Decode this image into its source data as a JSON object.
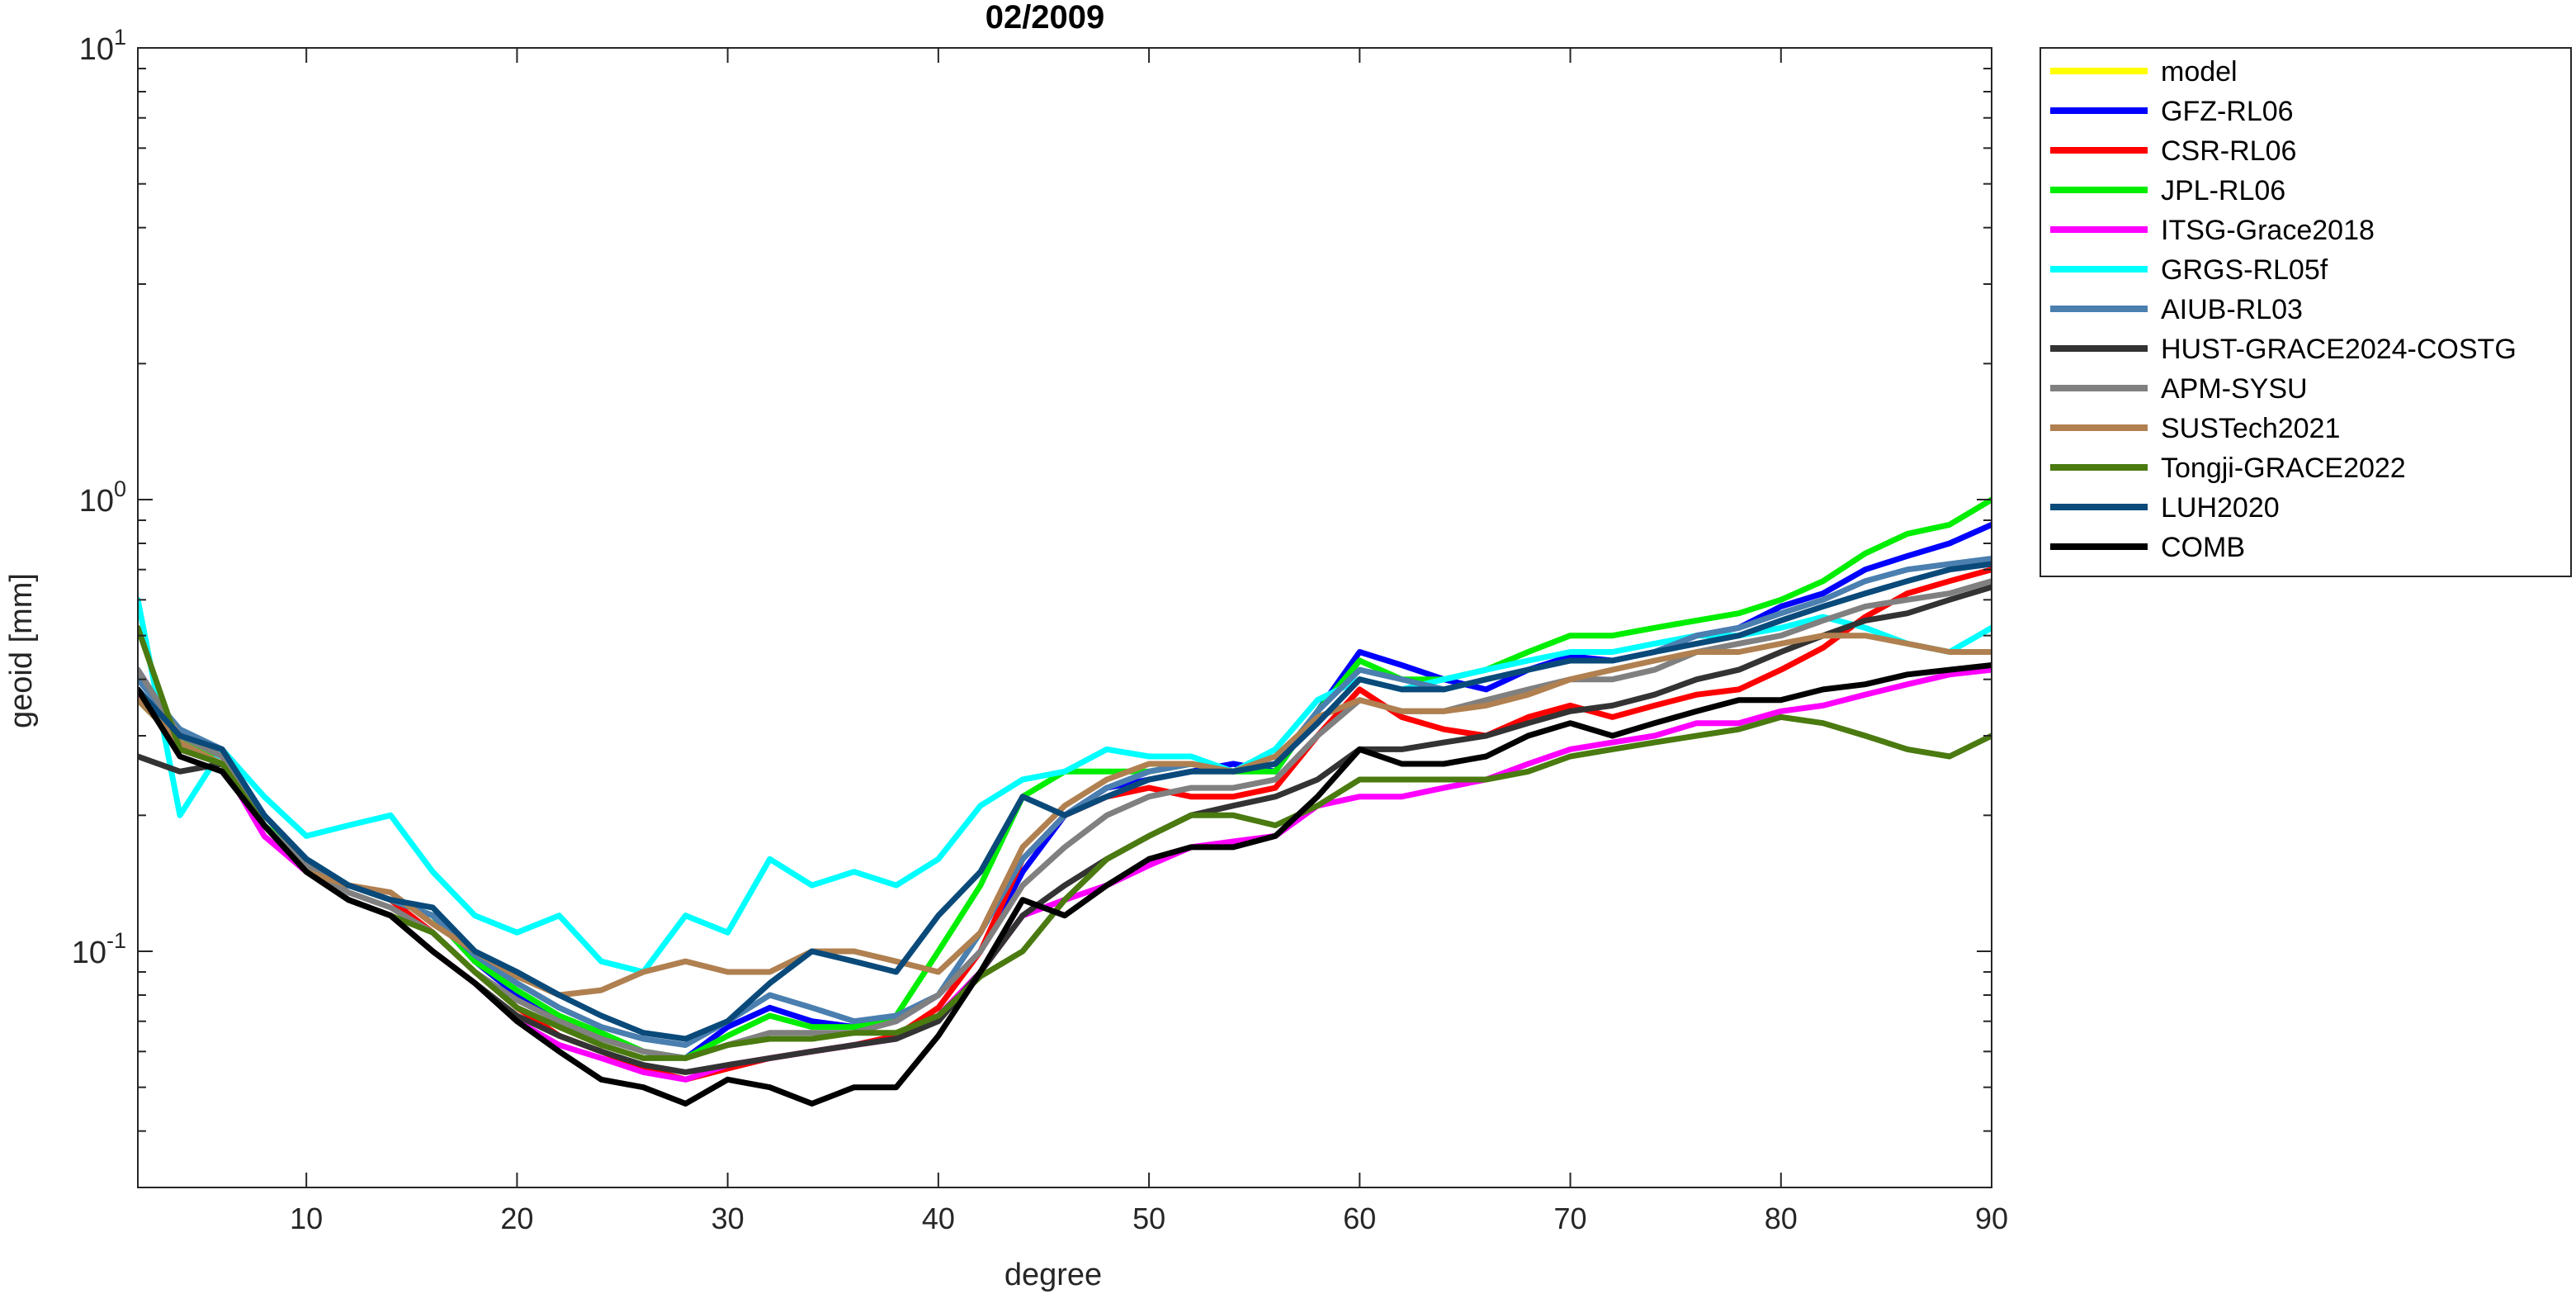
{
  "chart_data": {
    "type": "line",
    "title": "02/2009",
    "xlabel": "degree",
    "ylabel": "geoid [mm]",
    "xlim": [
      2,
      90
    ],
    "ylim": [
      0.03,
      10
    ],
    "yscale": "log",
    "x_ticks": [
      10,
      20,
      30,
      40,
      50,
      60,
      70,
      80,
      90
    ],
    "x_tick_labels": [
      "10",
      "20",
      "30",
      "40",
      "50",
      "60",
      "70",
      "80",
      "90"
    ],
    "y_ticks": [
      0.1,
      1,
      10
    ],
    "y_tick_labels": [
      {
        "base": "10",
        "exp": "-1"
      },
      {
        "base": "10",
        "exp": "0"
      },
      {
        "base": "10",
        "exp": "1"
      }
    ],
    "grid": false,
    "legend_position": "outside-right",
    "x": [
      2,
      4,
      6,
      8,
      10,
      12,
      14,
      16,
      18,
      20,
      22,
      24,
      26,
      28,
      30,
      32,
      34,
      36,
      38,
      40,
      42,
      44,
      46,
      48,
      50,
      52,
      54,
      56,
      58,
      60,
      62,
      64,
      66,
      68,
      70,
      72,
      74,
      76,
      78,
      80,
      82,
      84,
      86,
      88,
      90
    ],
    "series": [
      {
        "name": "model",
        "color": "#FFFF00",
        "values": [
          null,
          null,
          null,
          null,
          null,
          null,
          null,
          null,
          null,
          null,
          null,
          null,
          null,
          null,
          null,
          null,
          null,
          null,
          null,
          null,
          null,
          null,
          null,
          null,
          null,
          null,
          null,
          null,
          null,
          null,
          null,
          null,
          null,
          null,
          null,
          null,
          null,
          null,
          null,
          null,
          null,
          null,
          null,
          null,
          null
        ]
      },
      {
        "name": "GFZ-RL06",
        "color": "#0000FF",
        "values": [
          0.42,
          0.3,
          0.28,
          0.2,
          0.16,
          0.14,
          0.13,
          0.12,
          0.095,
          0.08,
          0.07,
          0.065,
          0.06,
          0.058,
          0.068,
          0.075,
          0.07,
          0.068,
          0.07,
          0.08,
          0.1,
          0.15,
          0.2,
          0.23,
          0.24,
          0.25,
          0.26,
          0.25,
          0.34,
          0.46,
          0.43,
          0.4,
          0.38,
          0.42,
          0.45,
          0.44,
          0.46,
          0.5,
          0.52,
          0.58,
          0.62,
          0.7,
          0.75,
          0.8,
          0.88
        ]
      },
      {
        "name": "CSR-RL06",
        "color": "#FF0000",
        "values": [
          0.36,
          0.31,
          0.27,
          0.19,
          0.15,
          0.14,
          0.13,
          0.11,
          0.09,
          0.075,
          0.065,
          0.06,
          0.055,
          0.052,
          0.055,
          0.058,
          0.06,
          0.062,
          0.065,
          0.075,
          0.1,
          0.16,
          0.2,
          0.22,
          0.23,
          0.22,
          0.22,
          0.23,
          0.3,
          0.38,
          0.33,
          0.31,
          0.3,
          0.33,
          0.35,
          0.33,
          0.35,
          0.37,
          0.38,
          0.42,
          0.47,
          0.55,
          0.62,
          0.66,
          0.7
        ]
      },
      {
        "name": "JPL-RL06",
        "color": "#00EE00",
        "values": [
          0.36,
          0.29,
          0.27,
          0.19,
          0.16,
          0.14,
          0.13,
          0.12,
          0.095,
          0.082,
          0.072,
          0.066,
          0.06,
          0.058,
          0.065,
          0.072,
          0.068,
          0.068,
          0.072,
          0.1,
          0.14,
          0.22,
          0.25,
          0.25,
          0.25,
          0.26,
          0.25,
          0.25,
          0.34,
          0.44,
          0.4,
          0.4,
          0.42,
          0.46,
          0.5,
          0.5,
          0.52,
          0.54,
          0.56,
          0.6,
          0.66,
          0.76,
          0.84,
          0.88,
          1.0
        ]
      },
      {
        "name": "ITSG-Grace2018",
        "color": "#FF00FF",
        "values": [
          0.37,
          0.28,
          0.26,
          0.18,
          0.15,
          0.13,
          0.12,
          0.1,
          0.085,
          0.07,
          0.062,
          0.058,
          0.054,
          0.052,
          0.056,
          0.058,
          0.06,
          0.062,
          0.064,
          0.072,
          0.09,
          0.12,
          0.13,
          0.14,
          0.155,
          0.17,
          0.175,
          0.18,
          0.21,
          0.22,
          0.22,
          0.23,
          0.24,
          0.26,
          0.28,
          0.29,
          0.3,
          0.32,
          0.32,
          0.34,
          0.35,
          0.37,
          0.39,
          0.41,
          0.42
        ]
      },
      {
        "name": "GRGS-RL05f",
        "color": "#00FFFF",
        "values": [
          0.6,
          0.2,
          0.28,
          0.22,
          0.18,
          0.19,
          0.2,
          0.15,
          0.12,
          0.11,
          0.12,
          0.095,
          0.09,
          0.12,
          0.11,
          0.16,
          0.14,
          0.15,
          0.14,
          0.16,
          0.21,
          0.24,
          0.25,
          0.28,
          0.27,
          0.27,
          0.25,
          0.28,
          0.36,
          0.4,
          0.38,
          0.4,
          0.42,
          0.44,
          0.46,
          0.46,
          0.48,
          0.5,
          0.5,
          0.52,
          0.55,
          0.52,
          0.48,
          0.46,
          0.52
        ]
      },
      {
        "name": "AIUB-RL03",
        "color": "#4A7FAF",
        "values": [
          0.4,
          0.31,
          0.28,
          0.2,
          0.16,
          0.14,
          0.13,
          0.12,
          0.098,
          0.085,
          0.075,
          0.068,
          0.064,
          0.062,
          0.07,
          0.08,
          0.075,
          0.07,
          0.072,
          0.08,
          0.11,
          0.16,
          0.2,
          0.23,
          0.25,
          0.26,
          0.25,
          0.26,
          0.34,
          0.42,
          0.4,
          0.38,
          0.4,
          0.42,
          0.44,
          0.44,
          0.46,
          0.5,
          0.52,
          0.56,
          0.6,
          0.66,
          0.7,
          0.72,
          0.74
        ]
      },
      {
        "name": "HUST-GRACE2024-COSTG",
        "color": "#333333",
        "values": [
          0.27,
          0.25,
          0.26,
          0.19,
          0.15,
          0.13,
          0.12,
          0.1,
          0.085,
          0.072,
          0.065,
          0.06,
          0.056,
          0.054,
          0.056,
          0.058,
          0.06,
          0.062,
          0.064,
          0.07,
          0.09,
          0.12,
          0.14,
          0.16,
          0.18,
          0.2,
          0.21,
          0.22,
          0.24,
          0.28,
          0.28,
          0.29,
          0.3,
          0.32,
          0.34,
          0.35,
          0.37,
          0.4,
          0.42,
          0.46,
          0.5,
          0.54,
          0.56,
          0.6,
          0.64
        ]
      },
      {
        "name": "APM-SYSU",
        "color": "#808080",
        "values": [
          0.42,
          0.3,
          0.27,
          0.19,
          0.155,
          0.135,
          0.125,
          0.11,
          0.09,
          0.078,
          0.07,
          0.064,
          0.06,
          0.058,
          0.062,
          0.066,
          0.066,
          0.066,
          0.07,
          0.08,
          0.1,
          0.14,
          0.17,
          0.2,
          0.22,
          0.23,
          0.23,
          0.24,
          0.3,
          0.36,
          0.34,
          0.34,
          0.36,
          0.38,
          0.4,
          0.4,
          0.42,
          0.46,
          0.48,
          0.5,
          0.54,
          0.58,
          0.6,
          0.62,
          0.66
        ]
      },
      {
        "name": "SUSTech2021",
        "color": "#B08050",
        "values": [
          0.36,
          0.29,
          0.26,
          0.19,
          0.15,
          0.14,
          0.135,
          0.115,
          0.1,
          0.088,
          0.08,
          0.082,
          0.09,
          0.095,
          0.09,
          0.09,
          0.1,
          0.1,
          0.095,
          0.09,
          0.11,
          0.17,
          0.21,
          0.24,
          0.26,
          0.26,
          0.25,
          0.27,
          0.33,
          0.36,
          0.34,
          0.34,
          0.35,
          0.37,
          0.4,
          0.42,
          0.44,
          0.46,
          0.46,
          0.48,
          0.5,
          0.5,
          0.48,
          0.46,
          0.46
        ]
      },
      {
        "name": "Tongji-GRACE2022",
        "color": "#4A7A10",
        "values": [
          0.52,
          0.28,
          0.26,
          0.19,
          0.15,
          0.13,
          0.12,
          0.11,
          0.09,
          0.075,
          0.068,
          0.062,
          0.058,
          0.058,
          0.062,
          0.064,
          0.064,
          0.066,
          0.066,
          0.072,
          0.088,
          0.1,
          0.13,
          0.16,
          0.18,
          0.2,
          0.2,
          0.19,
          0.21,
          0.24,
          0.24,
          0.24,
          0.24,
          0.25,
          0.27,
          0.28,
          0.29,
          0.3,
          0.31,
          0.33,
          0.32,
          0.3,
          0.28,
          0.27,
          0.3
        ]
      },
      {
        "name": "LUH2020",
        "color": "#0A4A7A",
        "values": [
          0.38,
          0.3,
          0.28,
          0.2,
          0.16,
          0.14,
          0.13,
          0.125,
          0.1,
          0.09,
          0.08,
          0.072,
          0.066,
          0.064,
          0.07,
          0.085,
          0.1,
          0.095,
          0.09,
          0.12,
          0.15,
          0.22,
          0.2,
          0.22,
          0.24,
          0.25,
          0.25,
          0.26,
          0.32,
          0.4,
          0.38,
          0.38,
          0.4,
          0.42,
          0.44,
          0.44,
          0.46,
          0.48,
          0.5,
          0.54,
          0.58,
          0.62,
          0.66,
          0.7,
          0.72
        ]
      },
      {
        "name": "COMB",
        "color": "#000000",
        "values": [
          0.38,
          0.27,
          0.25,
          0.19,
          0.15,
          0.13,
          0.12,
          0.1,
          0.085,
          0.07,
          0.06,
          0.052,
          0.05,
          0.046,
          0.052,
          0.05,
          0.046,
          0.05,
          0.05,
          0.065,
          0.09,
          0.13,
          0.12,
          0.14,
          0.16,
          0.17,
          0.17,
          0.18,
          0.22,
          0.28,
          0.26,
          0.26,
          0.27,
          0.3,
          0.32,
          0.3,
          0.32,
          0.34,
          0.36,
          0.36,
          0.38,
          0.39,
          0.41,
          0.42,
          0.43
        ]
      }
    ]
  }
}
